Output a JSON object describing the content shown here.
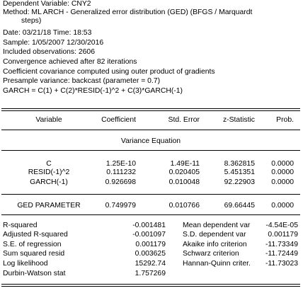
{
  "header": {
    "dependent": "Dependent Variable: CNY2",
    "method_line1": "Method: ML ARCH - Generalized error distribution (GED) (BFGS / Marquardt",
    "method_line2": "steps)",
    "date": "Date: 03/21/18   Time: 18:53",
    "sample": "Sample: 1/05/2007 12/30/2016",
    "observations": "Included observations: 2606",
    "convergence": "Convergence achieved after 82 iterations",
    "covariance": "Coefficient covariance computed using outer product of gradients",
    "presample": "Presample variance: backcast (parameter = 0.7)",
    "equation": "GARCH = C(1) + C(2)*RESID(-1)^2 + C(3)*GARCH(-1)"
  },
  "columns": [
    "Variable",
    "Coefficient",
    "Std. Error",
    "z-Statistic",
    "Prob."
  ],
  "variance_title": "Variance Equation",
  "variance_rows": [
    [
      "C",
      "1.25E-10",
      "1.49E-11",
      "8.362815",
      "0.0000"
    ],
    [
      "RESID(-1)^2",
      "0.111232",
      "0.020405",
      "5.451351",
      "0.0000"
    ],
    [
      "GARCH(-1)",
      "0.926698",
      "0.010048",
      "92.22903",
      "0.0000"
    ]
  ],
  "ged_row": [
    "GED PARAMETER",
    "0.749979",
    "0.010766",
    "69.66445",
    "0.0000"
  ],
  "stats": [
    [
      "R-squared",
      "-0.001481",
      "Mean dependent var",
      "-4.54E-05"
    ],
    [
      "Adjusted R-squared",
      "-0.001097",
      "S.D. dependent var",
      "0.001179"
    ],
    [
      "S.E. of regression",
      "0.001179",
      "Akaike info criterion",
      "-11.73349"
    ],
    [
      "Sum squared resid",
      "0.003625",
      "Schwarz criterion",
      "-11.72449"
    ],
    [
      "Log likelihood",
      "15292.74",
      "Hannan-Quinn criter.",
      "-11.73023"
    ],
    [
      "Durbin-Watson stat",
      "1.757269",
      "",
      ""
    ]
  ]
}
